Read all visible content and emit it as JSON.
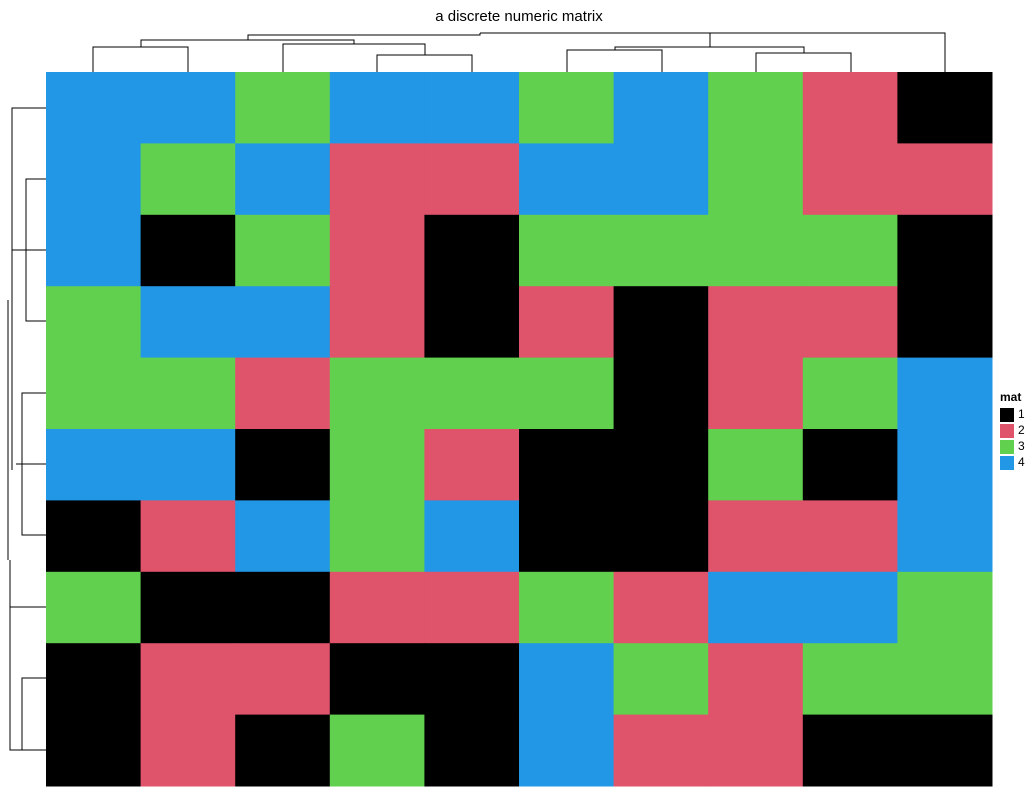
{
  "chart_data": {
    "type": "heatmap",
    "title": "a discrete numeric matrix",
    "values": [
      [
        4,
        4,
        3,
        4,
        4,
        3,
        4,
        3,
        2,
        1
      ],
      [
        4,
        3,
        4,
        2,
        2,
        4,
        4,
        3,
        2,
        2
      ],
      [
        4,
        1,
        3,
        2,
        1,
        3,
        3,
        3,
        3,
        1
      ],
      [
        3,
        4,
        4,
        2,
        1,
        2,
        1,
        2,
        2,
        1
      ],
      [
        3,
        3,
        2,
        3,
        3,
        3,
        1,
        2,
        3,
        4
      ],
      [
        4,
        4,
        1,
        3,
        2,
        1,
        1,
        3,
        1,
        4
      ],
      [
        1,
        2,
        4,
        3,
        4,
        1,
        1,
        2,
        2,
        4
      ],
      [
        3,
        1,
        1,
        2,
        2,
        3,
        2,
        4,
        4,
        3
      ],
      [
        1,
        2,
        2,
        1,
        1,
        4,
        3,
        2,
        3,
        3
      ],
      [
        1,
        2,
        1,
        3,
        1,
        4,
        2,
        2,
        1,
        1
      ]
    ],
    "legend": {
      "title": "mat",
      "levels": [
        1,
        2,
        3,
        4
      ],
      "colors": [
        "#000000",
        "#DF536B",
        "#61D04F",
        "#2297E6"
      ]
    }
  }
}
